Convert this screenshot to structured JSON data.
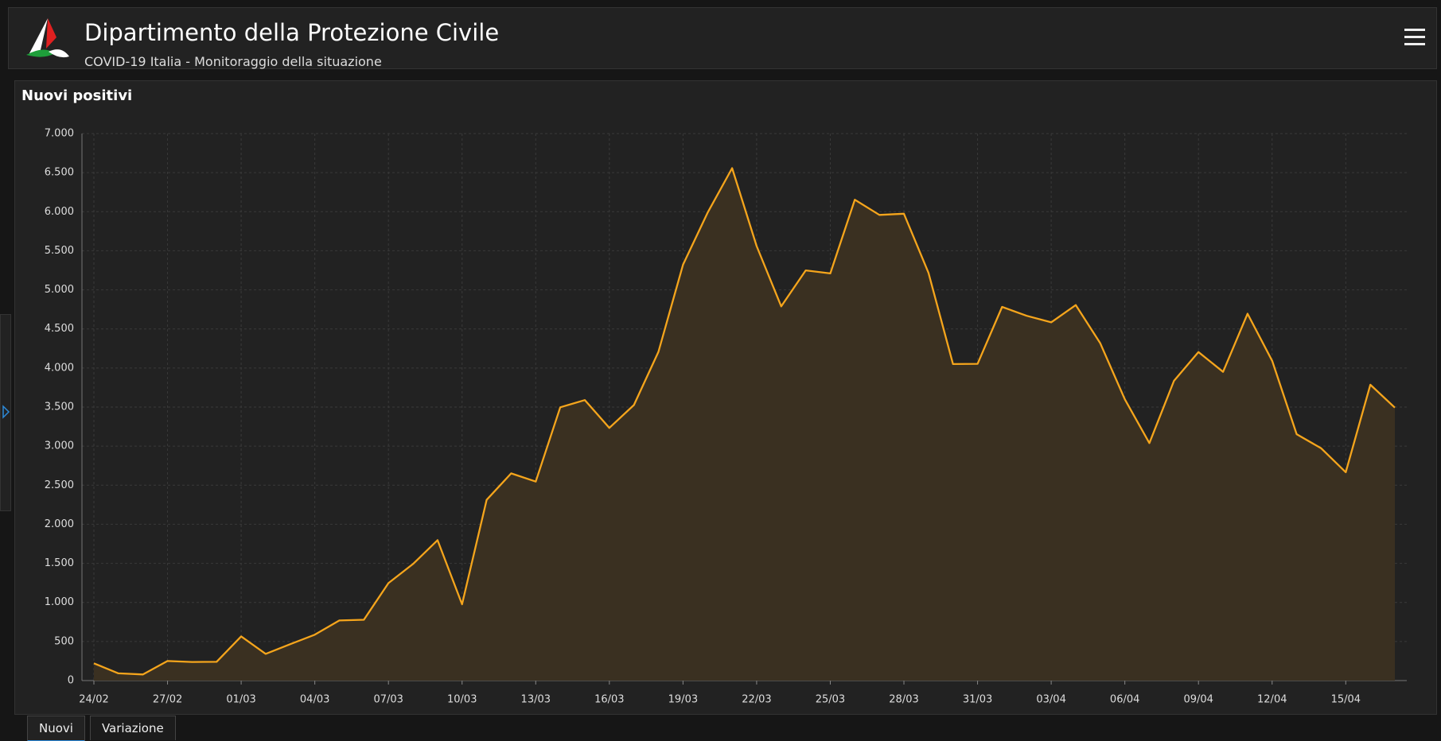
{
  "header": {
    "title": "Dipartimento della Protezione Civile",
    "subtitle": "COVID-19 Italia - Monitoraggio della situazione"
  },
  "tabs": [
    "Nuovi",
    "Variazione"
  ],
  "chart_data": {
    "type": "area",
    "title": "Nuovi positivi",
    "categories": [
      "24/02",
      null,
      null,
      "27/02",
      null,
      null,
      "01/03",
      null,
      null,
      "04/03",
      null,
      null,
      "07/03",
      null,
      null,
      "10/03",
      null,
      null,
      "13/03",
      null,
      null,
      "16/03",
      null,
      null,
      "19/03",
      null,
      null,
      "22/03",
      null,
      null,
      "25/03",
      null,
      null,
      "28/03",
      null,
      null,
      "31/03",
      null,
      null,
      "03/04",
      null,
      null,
      "06/04",
      null,
      null,
      "09/04",
      null,
      null,
      "12/04",
      null,
      null,
      "15/04",
      null,
      null
    ],
    "values": [
      221,
      93,
      78,
      250,
      238,
      240,
      566,
      342,
      466,
      587,
      769,
      778,
      1247,
      1492,
      1797,
      977,
      2313,
      2651,
      2547,
      3497,
      3590,
      3233,
      3526,
      4207,
      5322,
      5986,
      6557,
      5560,
      4789,
      5249,
      5210,
      6153,
      5959,
      5974,
      5217,
      4050,
      4053,
      4782,
      4668,
      4585,
      4805,
      4316,
      3599,
      3039,
      3836,
      4204,
      3951,
      4694,
      4092,
      3153,
      2972,
      2667,
      3786,
      3493
    ],
    "color": "#f5a51c",
    "fill": "#3a3021",
    "ylim": [
      0,
      7000
    ],
    "yticks": [
      0,
      500,
      {
        "value": 1000,
        "label": "1.000"
      },
      {
        "value": 1500,
        "label": "1.500"
      },
      {
        "value": 2000,
        "label": "2.000"
      },
      {
        "value": 2500,
        "label": "2.500"
      },
      {
        "value": 3000,
        "label": "3.000"
      },
      {
        "value": 3500,
        "label": "3.500"
      },
      {
        "value": 4000,
        "label": "4.000"
      },
      {
        "value": 4500,
        "label": "4.500"
      },
      {
        "value": 5000,
        "label": "5.000"
      },
      {
        "value": 5500,
        "label": "5.500"
      },
      {
        "value": 6000,
        "label": "6.000"
      },
      {
        "value": 6500,
        "label": "6.500"
      },
      {
        "value": 7000,
        "label": "7.000"
      }
    ],
    "grid": true
  }
}
